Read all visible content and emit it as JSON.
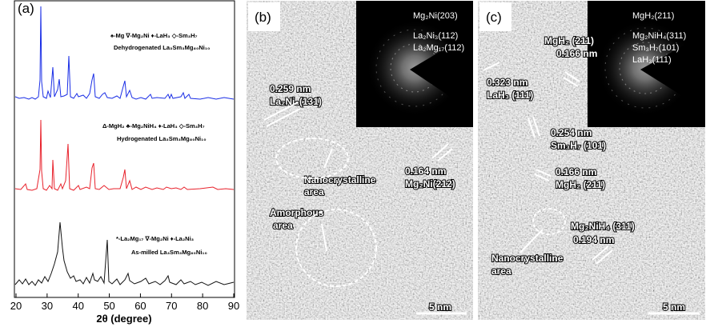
{
  "panel_a": {
    "label": "(a)",
    "x_label": "2θ (degree)",
    "xlim": [
      20,
      90
    ],
    "xticks": [
      20,
      30,
      40,
      50,
      60,
      70,
      80,
      90
    ],
    "dehydrogenated": {
      "legend": "♠-Mg ∇-Mg₂Ni ♦-LaH₃ ◇-Sm₃H₇",
      "name": "Dehydrogenated La₃Sm₃Mg₈₀Ni₁₀"
    },
    "hydrogenated": {
      "legend": "Δ-MgH₂ ♣-Mg₂NiH₄ ♦-LaH₃ ◇-Sm₃H₇",
      "name": "Hydrogenated La₃Sm₃Mg₈₀Ni₁₀"
    },
    "as_milled": {
      "legend": "*-La₂Mg₁₇ ∇-Mg₂Ni ♦-La₂Ni₃",
      "name": "As-milled La₃Sm₃Mg₈₀Ni₁₀"
    }
  },
  "panel_b": {
    "label": "(b)",
    "inset_labels": [
      "Mg₂Ni(203)",
      "La₂Ni₃(112)",
      "La₂Mg₁₇(112)"
    ],
    "annotations": [
      "0.259 nm",
      "La₂Ni₃(131)",
      "Nanocrystalline",
      "area",
      "Amorphous",
      "area",
      "0.164 nm",
      "Mg₂Ni(212)"
    ],
    "scale_bar": "5 nm"
  },
  "panel_c": {
    "label": "(c)",
    "inset_labels": [
      "MgH₂(211)",
      "Mg₂NiH₄(311)",
      "Sm₃H₇(101)",
      "LaH₃(111)"
    ],
    "annotations": [
      "MgH₂ (211)",
      "0.166 nm",
      "0.323 nm",
      "LaH₃ (111)",
      "0.254 nm",
      "Sm₃H₇ (101)",
      "0.166 nm",
      "MgH₂ (211)",
      "Mg₂NiH₄ (311)",
      "0.194 nm",
      "Nanocrystalline",
      "area"
    ],
    "scale_bar": "5 nm"
  }
}
